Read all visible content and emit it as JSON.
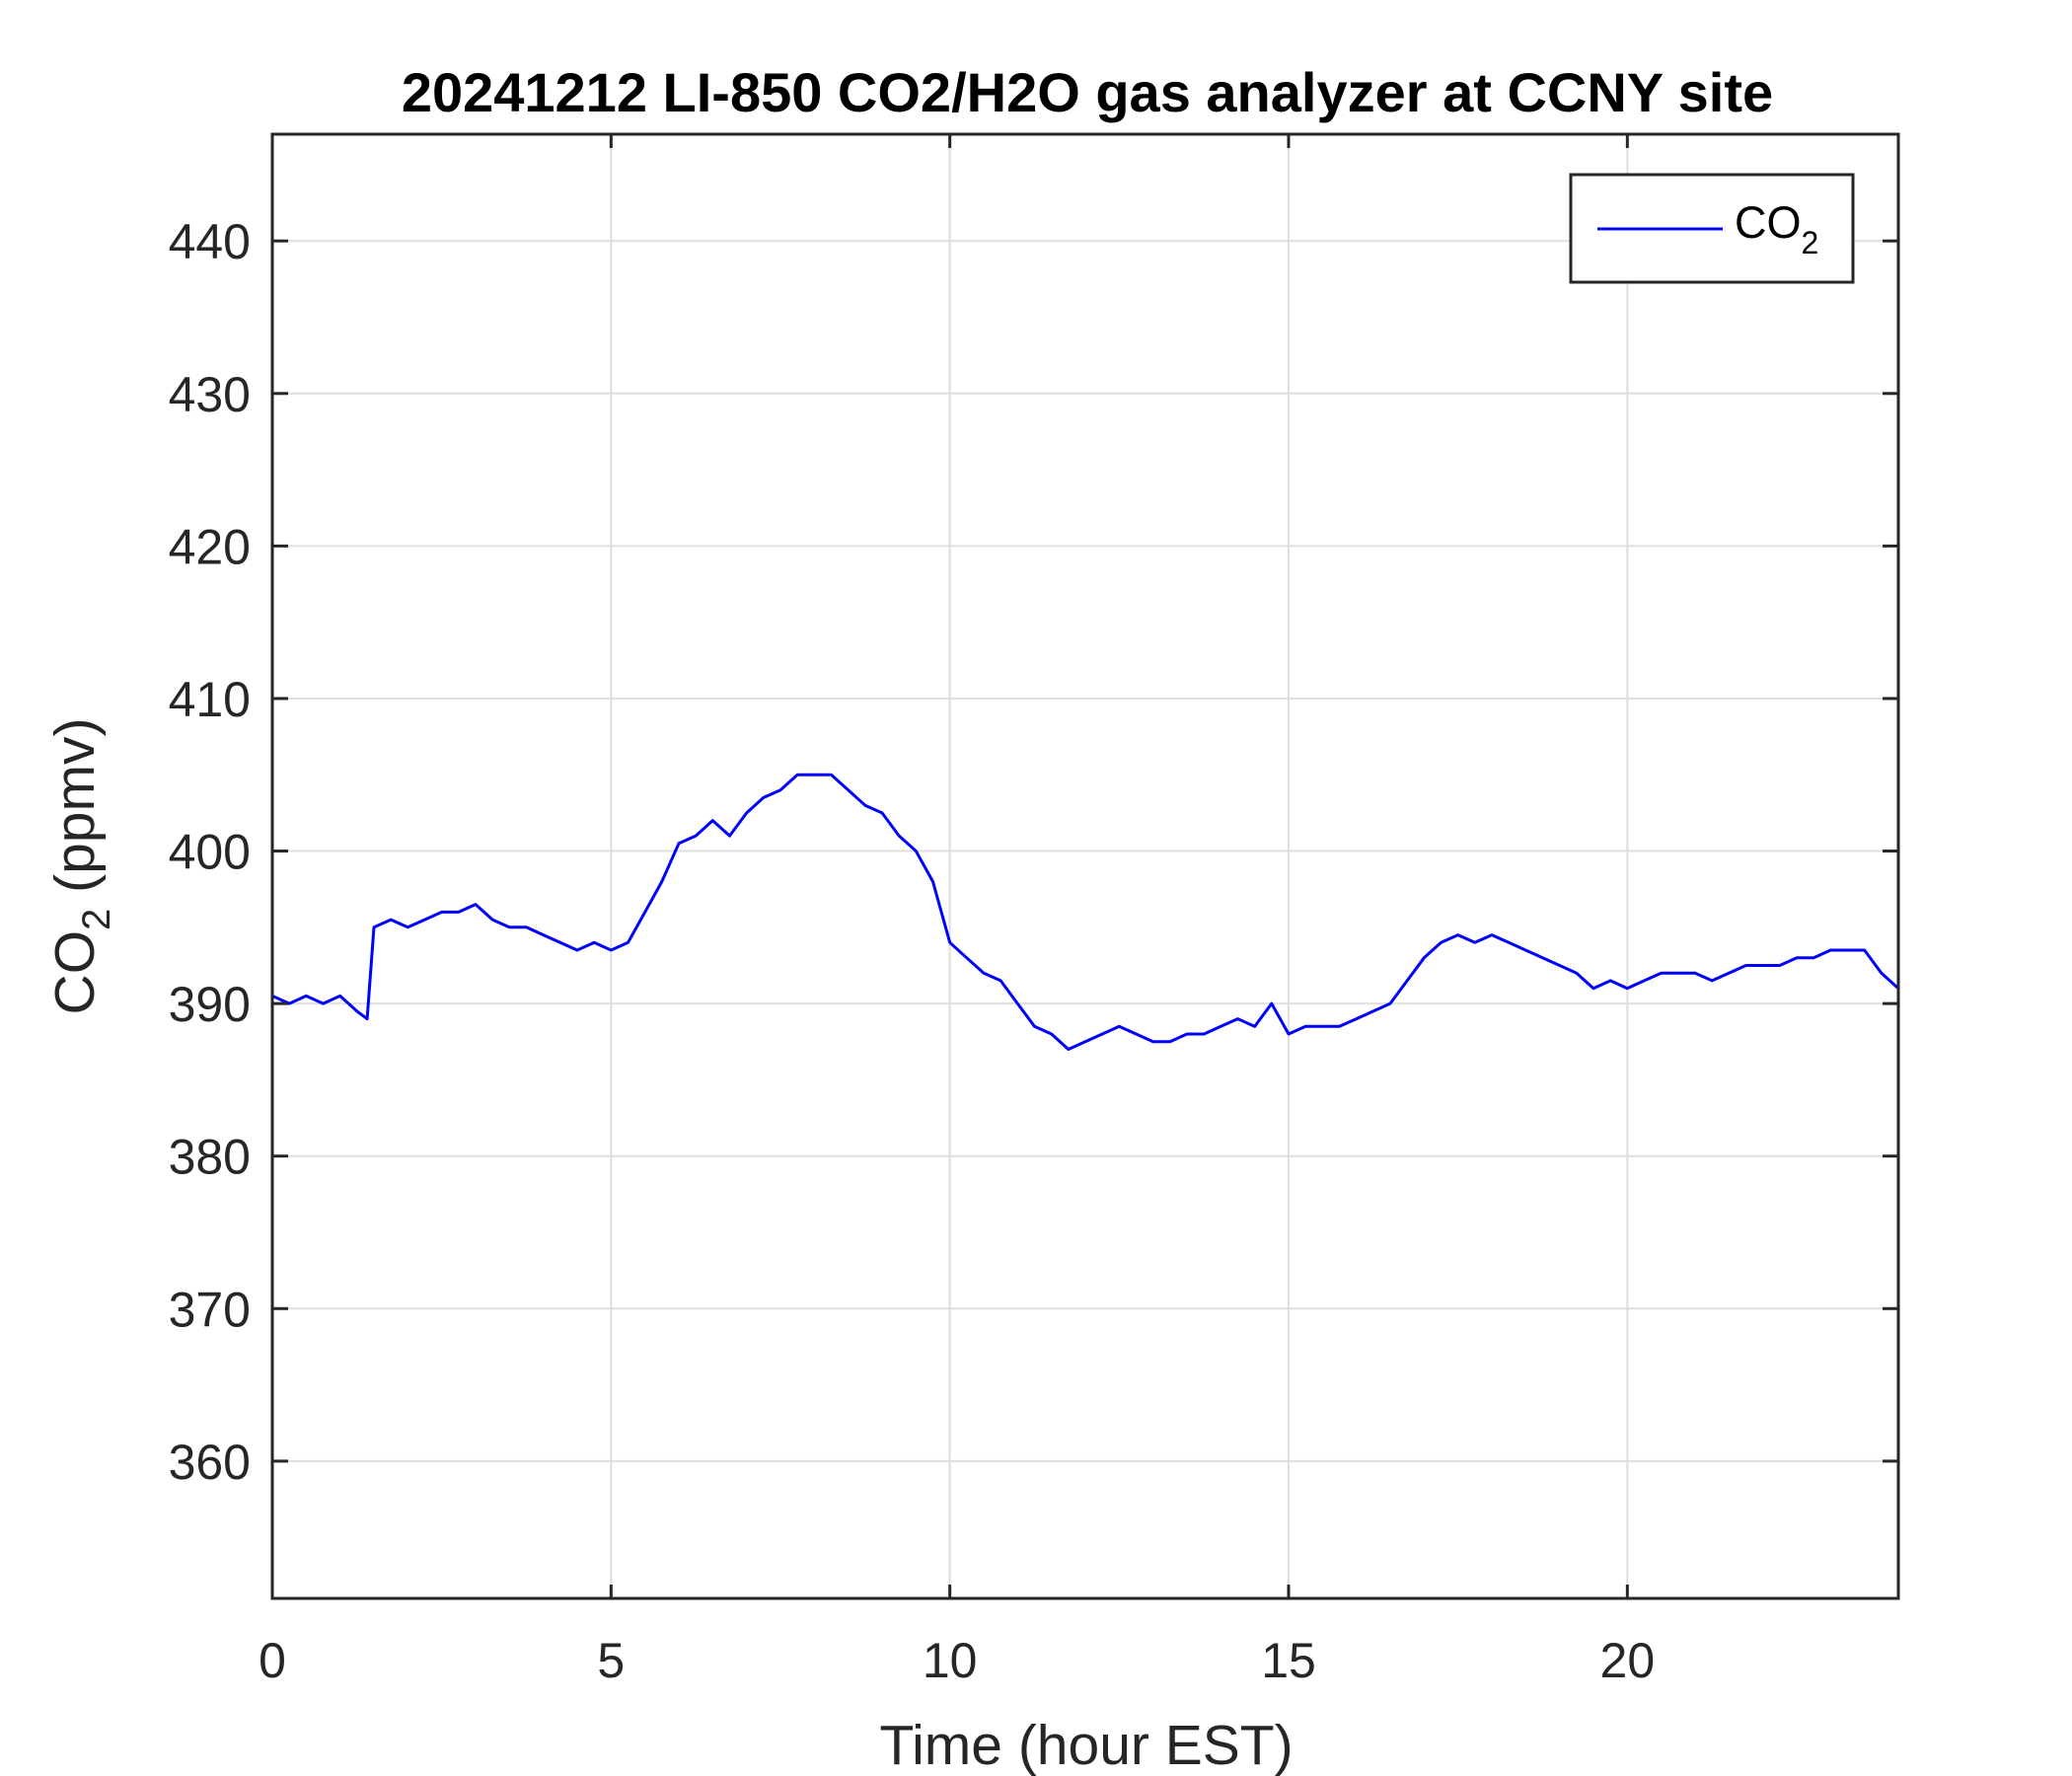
{
  "chart_data": {
    "type": "line",
    "title": "20241212 LI-850 CO2/H2O gas analyzer at CCNY site",
    "xlabel": "Time (hour EST)",
    "ylabel": {
      "base": "CO",
      "sub": "2",
      "rest": " (ppmv)"
    },
    "xlim": [
      0,
      24
    ],
    "ylim": [
      351,
      447
    ],
    "xticks": [
      0,
      5,
      10,
      15,
      20
    ],
    "yticks": [
      360,
      370,
      380,
      390,
      400,
      410,
      420,
      430,
      440
    ],
    "grid": true,
    "legend": {
      "placement": "top-right",
      "entries": [
        {
          "base": "CO",
          "sub": "2"
        }
      ]
    },
    "colors": {
      "series": "#0000ff",
      "axis": "#262626",
      "grid": "#dfdfdf"
    },
    "series": [
      {
        "color": "#0000ff",
        "x": [
          0,
          0.25,
          0.5,
          0.75,
          1,
          1.25,
          1.4,
          1.5,
          1.75,
          2,
          2.25,
          2.5,
          2.75,
          3,
          3.25,
          3.5,
          3.75,
          4,
          4.25,
          4.5,
          4.75,
          5,
          5.25,
          5.5,
          5.75,
          6,
          6.25,
          6.5,
          6.75,
          7,
          7.25,
          7.5,
          7.75,
          8,
          8.25,
          8.5,
          8.75,
          9,
          9.25,
          9.5,
          9.75,
          10,
          10.25,
          10.5,
          10.75,
          11,
          11.25,
          11.5,
          11.75,
          12,
          12.25,
          12.5,
          12.75,
          13,
          13.25,
          13.5,
          13.75,
          14,
          14.25,
          14.5,
          14.75,
          15,
          15.25,
          15.5,
          15.75,
          16,
          16.25,
          16.5,
          16.75,
          17,
          17.25,
          17.5,
          17.75,
          18,
          18.25,
          18.5,
          18.75,
          19,
          19.25,
          19.5,
          19.75,
          20,
          20.25,
          20.5,
          20.75,
          21,
          21.25,
          21.5,
          21.75,
          22,
          22.25,
          22.5,
          22.75,
          23,
          23.25,
          23.5,
          23.75,
          24
        ],
        "y": [
          390.5,
          390,
          390.5,
          390,
          390.5,
          389.5,
          389,
          395,
          395.5,
          395,
          395.5,
          396,
          396,
          396.5,
          395.5,
          395,
          395,
          394.5,
          394,
          393.5,
          394,
          393.5,
          394,
          396,
          398,
          400.5,
          401,
          402,
          401,
          402.5,
          403.5,
          404,
          405,
          405,
          405,
          404,
          403,
          402.5,
          401,
          400,
          398,
          394,
          393,
          392,
          391.5,
          390,
          388.5,
          388,
          387,
          387.5,
          388,
          388.5,
          388,
          387.5,
          387.5,
          388,
          388,
          388.5,
          389,
          388.5,
          390,
          388,
          388.5,
          388.5,
          388.5,
          389,
          389.5,
          390,
          391.5,
          393,
          394,
          394.5,
          394,
          394.5,
          394,
          393.5,
          393,
          392.5,
          392,
          391,
          391.5,
          391,
          391.5,
          392,
          392,
          392,
          391.5,
          392,
          392.5,
          392.5,
          392.5,
          393,
          393,
          393.5,
          393.5,
          393.5,
          392,
          391
        ]
      }
    ]
  }
}
